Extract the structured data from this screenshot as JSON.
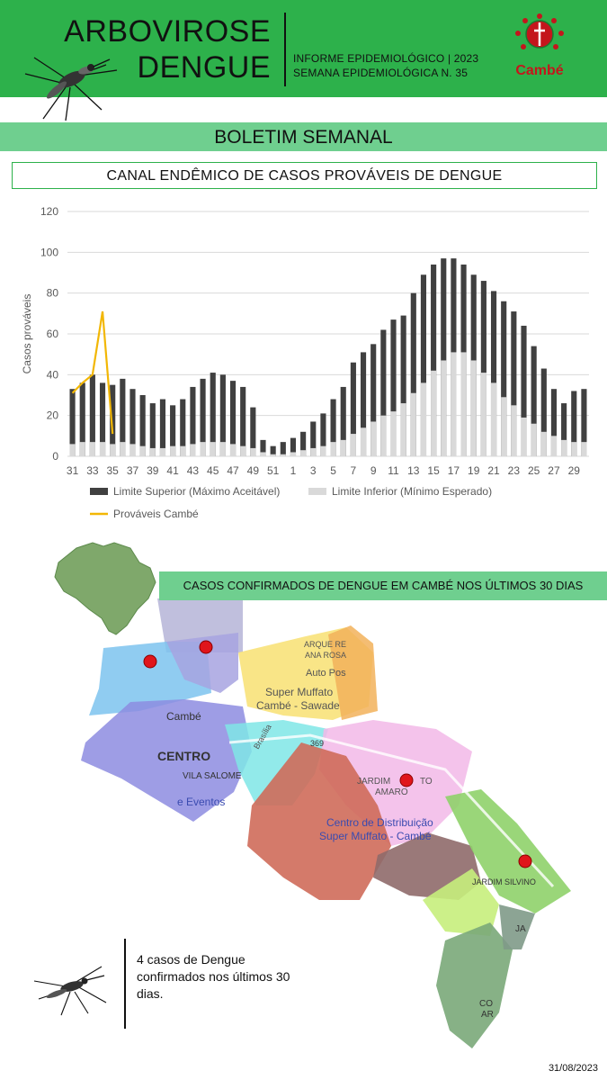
{
  "header": {
    "title_line1": "ARBOVIROSE",
    "title_line2": "DENGUE",
    "info_line1": "INFORME EPIDEMIOLÓGICO | 2023",
    "info_line2": "SEMANA EPIDEMIOLÓGICA  N. 35",
    "logo_text": "Cambé"
  },
  "banner": "BOLETIM SEMANAL",
  "chart_title": "CANAL ENDÊMICO DE CASOS PROVÁVEIS DE DENGUE",
  "chart_data": {
    "type": "bar",
    "title": "CANAL ENDÊMICO DE CASOS PROVÁVEIS DE DENGUE",
    "ylabel": "Casos prováveis",
    "xlabel": "",
    "ylim": [
      0,
      120
    ],
    "yticks": [
      0,
      20,
      40,
      60,
      80,
      100,
      120
    ],
    "grid": true,
    "legend": "bottom",
    "categories": [
      31,
      32,
      33,
      34,
      35,
      36,
      37,
      38,
      39,
      40,
      41,
      42,
      43,
      44,
      45,
      46,
      47,
      48,
      49,
      50,
      51,
      52,
      1,
      2,
      3,
      4,
      5,
      6,
      7,
      8,
      9,
      10,
      11,
      12,
      13,
      14,
      15,
      16,
      17,
      18,
      19,
      20,
      21,
      22,
      23,
      24,
      25,
      26,
      27,
      28,
      29,
      30
    ],
    "tick_labels": [
      "31",
      "33",
      "35",
      "37",
      "39",
      "41",
      "43",
      "45",
      "47",
      "49",
      "51",
      "1",
      "3",
      "5",
      "7",
      "9",
      "11",
      "13",
      "15",
      "17",
      "19",
      "21",
      "23",
      "25",
      "27",
      "29"
    ],
    "series": [
      {
        "name": "Limite Superior (Máximo Aceitável)",
        "type": "bar",
        "color": "#404040",
        "values": [
          33,
          36,
          40,
          36,
          35,
          38,
          33,
          30,
          26,
          28,
          25,
          28,
          34,
          38,
          41,
          40,
          37,
          34,
          24,
          8,
          5,
          7,
          9,
          12,
          17,
          21,
          28,
          34,
          46,
          51,
          55,
          62,
          67,
          69,
          80,
          89,
          94,
          97,
          97,
          94,
          89,
          86,
          81,
          76,
          71,
          64,
          54,
          43,
          33,
          26,
          32,
          33
        ]
      },
      {
        "name": "Limite Inferior (Mínimo Esperado)",
        "type": "bar",
        "color": "#d9d9d9",
        "values": [
          6,
          7,
          7,
          7,
          6,
          7,
          6,
          5,
          4,
          4,
          5,
          5,
          6,
          7,
          7,
          7,
          6,
          5,
          4,
          2,
          1,
          1,
          2,
          3,
          4,
          5,
          7,
          8,
          11,
          14,
          17,
          20,
          22,
          26,
          31,
          36,
          42,
          47,
          51,
          51,
          47,
          41,
          36,
          29,
          25,
          19,
          16,
          12,
          10,
          8,
          7,
          7
        ]
      },
      {
        "name": "Prováveis Cambé",
        "type": "line",
        "color": "#f2b705",
        "x": [
          31,
          32,
          33,
          34,
          35
        ],
        "values": [
          31,
          36,
          40,
          71,
          11
        ]
      }
    ]
  },
  "map": {
    "title": "CASOS CONFIRMADOS DE DENGUE EM CAMBÉ NOS ÚLTIMOS 30 DIAS",
    "labels": {
      "parque": "ARQUE RE",
      "ana_rosa": "ANA ROSA",
      "auto_pos": "Auto Pos",
      "muffato1": "Super Muffato",
      "muffato2": "Cambé - Sawade",
      "cambe": "Cambé",
      "centro": "CENTRO",
      "vila_salome": "VILA SALOME",
      "eventos": "e Eventos",
      "brasilia": "Brasília",
      "jardim_amaro1": "JARDIM",
      "jardim_amaro2": "TO",
      "jardim_amaro3": "AMARO",
      "cd1": "Centro de Distribuição",
      "cd2": "Super Muffato - Cambé",
      "jardim_silvino": "JARDIM SILVINO",
      "ja": "JA",
      "co": "CO",
      "ar": "AR",
      "road": "369"
    },
    "case_count": 4
  },
  "note": "4 casos de Dengue confirmados nos últimos 30 dias.",
  "date": "31/08/2023"
}
